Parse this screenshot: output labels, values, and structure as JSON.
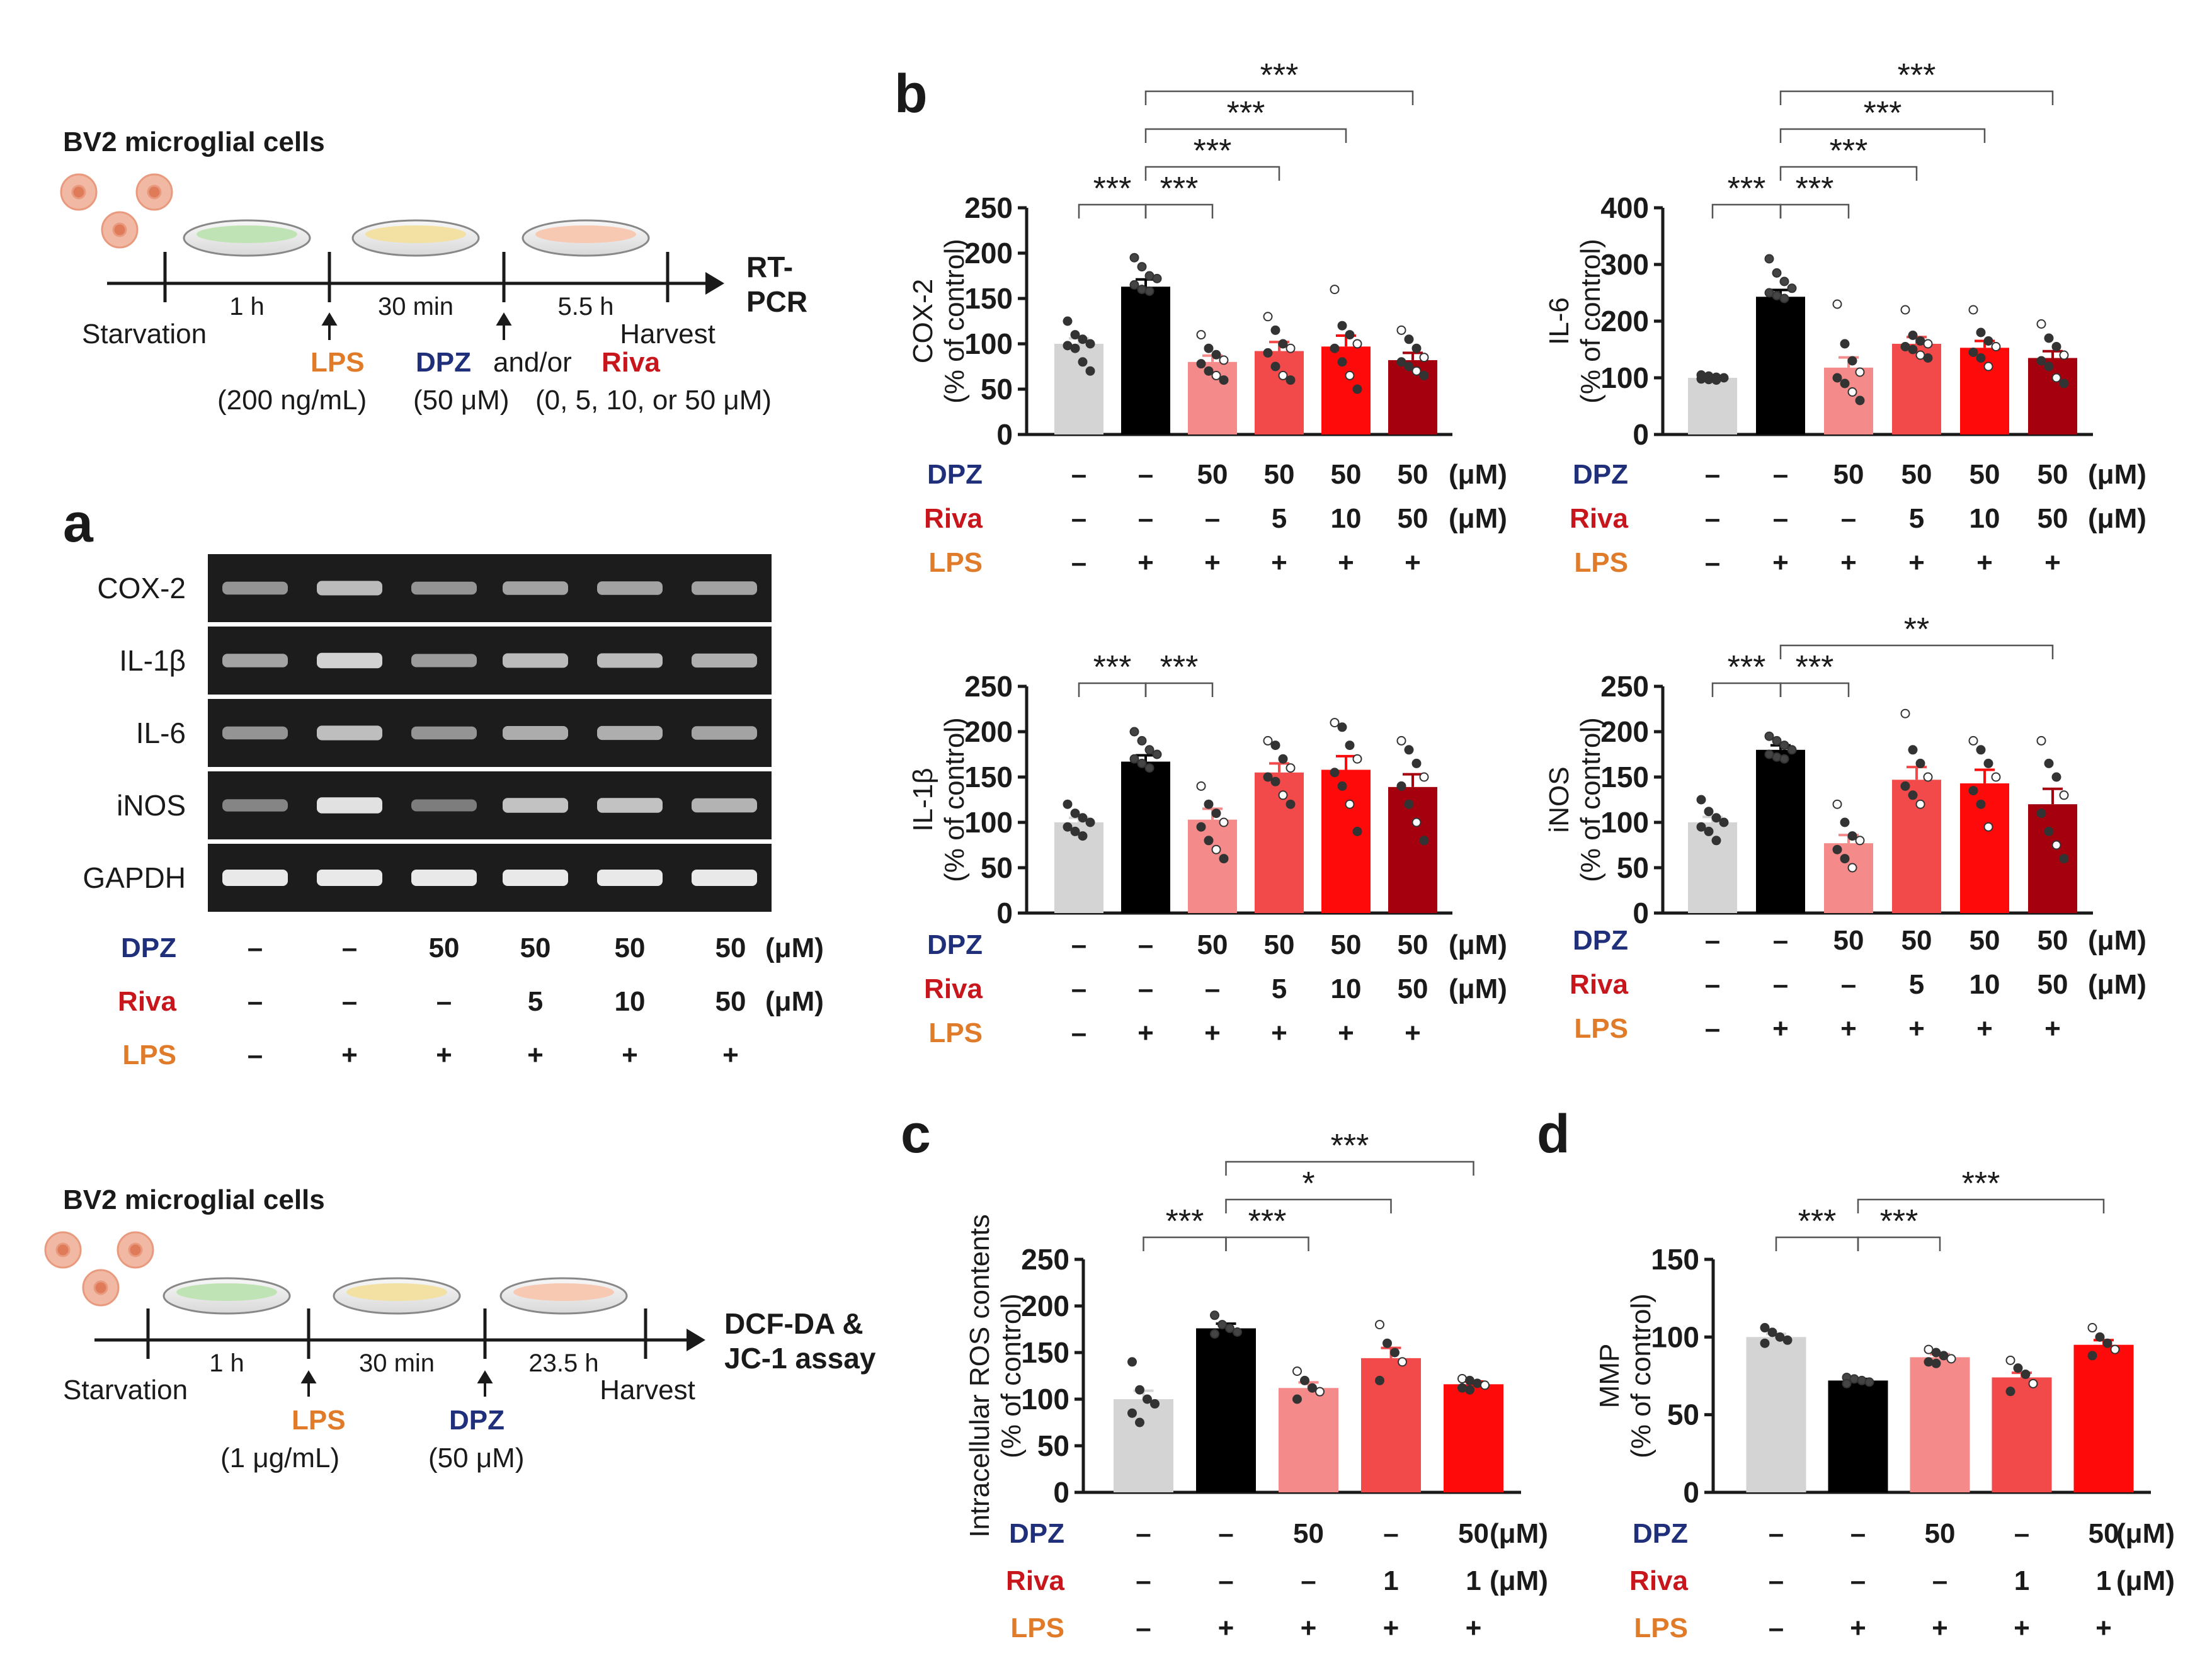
{
  "colors": {
    "ctrl": "#d4d4d4",
    "lps": "#000000",
    "t1": "#f48a8a",
    "t2": "#f24a4a",
    "t3": "#ff0a0a",
    "t4": "#a4000e",
    "dpz": "#1f2f7a",
    "riva": "#c8161d",
    "lps_label": "#e07b2a",
    "gel_bg": "#1c1c1c",
    "gel_band": "#e9e9e9"
  },
  "panel_labels": {
    "a": "a",
    "b": "b",
    "c": "c",
    "d": "d"
  },
  "schema_top": {
    "title": "BV2 microglial cells",
    "durations": [
      "1 h",
      "30 min",
      "5.5 h"
    ],
    "start": "Starvation",
    "end": "Harvest",
    "assay": [
      "RT-",
      "PCR"
    ],
    "lps": "LPS",
    "lps_dose": "(200 ng/mL)",
    "dpz": "DPZ",
    "andor": "and/or",
    "riva": "Riva",
    "dpz_dose": "(50 μM)",
    "riva_dose": "(0, 5, 10, or 50 μM)"
  },
  "schema_bottom": {
    "title": "BV2 microglial cells",
    "durations": [
      "1 h",
      "30 min",
      "23.5 h"
    ],
    "start": "Starvation",
    "end": "Harvest",
    "assay": [
      "DCF-DA &",
      "JC-1 assay"
    ],
    "lps": "LPS",
    "lps_dose": "(1 μg/mL)",
    "dpz": "DPZ",
    "dpz_dose": "(50 μM)"
  },
  "gel": {
    "rows": [
      "COX-2",
      "IL-1β",
      "IL-6",
      "iNOS",
      "GAPDH"
    ],
    "lanes": 6,
    "intensity": [
      [
        0.45,
        0.7,
        0.45,
        0.55,
        0.55,
        0.55
      ],
      [
        0.55,
        0.85,
        0.5,
        0.7,
        0.7,
        0.62
      ],
      [
        0.45,
        0.72,
        0.45,
        0.6,
        0.62,
        0.55
      ],
      [
        0.35,
        0.95,
        0.3,
        0.75,
        0.75,
        0.65
      ],
      [
        1.0,
        1.0,
        1.0,
        1.0,
        1.0,
        1.0
      ]
    ]
  },
  "treat_rows6": {
    "labels": [
      "DPZ",
      "Riva",
      "LPS"
    ],
    "dpz": [
      "–",
      "–",
      "50",
      "50",
      "50",
      "50"
    ],
    "riva": [
      "–",
      "–",
      "–",
      "5",
      "10",
      "50"
    ],
    "lps": [
      "–",
      "+",
      "+",
      "+",
      "+",
      "+"
    ],
    "unit": "(μM)"
  },
  "treat_rows5": {
    "labels": [
      "DPZ",
      "Riva",
      "LPS"
    ],
    "dpz": [
      "–",
      "–",
      "50",
      "–",
      "50"
    ],
    "riva": [
      "–",
      "–",
      "–",
      "1",
      "1"
    ],
    "lps": [
      "–",
      "+",
      "+",
      "+",
      "+"
    ],
    "unit": "(μM)"
  },
  "chart_data": [
    {
      "id": "b-cox2",
      "type": "bar",
      "ylabel": "COX-2",
      "ylabel2": "(% of control)",
      "ylim": [
        0,
        250
      ],
      "yticks": [
        0,
        50,
        100,
        150,
        200,
        250
      ],
      "values": [
        100,
        163,
        80,
        92,
        97,
        82
      ],
      "errors": [
        6,
        8,
        7,
        10,
        12,
        8
      ],
      "dots": [
        [
          125,
          110,
          105,
          100,
          98,
          95,
          80,
          70
        ],
        [
          195,
          185,
          175,
          172,
          165,
          160,
          158
        ],
        [
          110,
          95,
          88,
          82,
          78,
          70,
          65,
          60
        ],
        [
          130,
          115,
          100,
          95,
          90,
          75,
          65,
          60
        ],
        [
          160,
          120,
          110,
          100,
          95,
          80,
          65,
          50
        ],
        [
          115,
          105,
          95,
          85,
          80,
          75,
          70,
          65
        ]
      ],
      "sig": [
        {
          "a": 0,
          "b": 1,
          "label": "***",
          "level": 0
        },
        {
          "a": 1,
          "b": 2,
          "label": "***",
          "level": 0
        },
        {
          "a": 1,
          "b": 3,
          "label": "***",
          "level": 1
        },
        {
          "a": 1,
          "b": 4,
          "label": "***",
          "level": 2
        },
        {
          "a": 1,
          "b": 5,
          "label": "***",
          "level": 3
        }
      ]
    },
    {
      "id": "b-il6",
      "type": "bar",
      "ylabel": "IL-6",
      "ylabel2": "(% of control)",
      "ylim": [
        0,
        400
      ],
      "yticks": [
        0,
        100,
        200,
        300,
        400
      ],
      "values": [
        100,
        243,
        118,
        160,
        153,
        135
      ],
      "errors": [
        3,
        12,
        18,
        12,
        12,
        12
      ],
      "dots": [
        [
          105,
          103,
          101,
          100,
          98,
          97,
          96
        ],
        [
          310,
          285,
          270,
          258,
          250,
          245,
          240
        ],
        [
          230,
          160,
          130,
          110,
          100,
          90,
          75,
          60
        ],
        [
          220,
          175,
          165,
          160,
          155,
          150,
          140,
          135
        ],
        [
          220,
          180,
          165,
          155,
          145,
          135,
          120
        ],
        [
          195,
          170,
          155,
          140,
          130,
          120,
          100,
          90
        ]
      ],
      "sig": [
        {
          "a": 0,
          "b": 1,
          "label": "***",
          "level": 0
        },
        {
          "a": 1,
          "b": 2,
          "label": "***",
          "level": 0
        },
        {
          "a": 1,
          "b": 3,
          "label": "***",
          "level": 1
        },
        {
          "a": 1,
          "b": 4,
          "label": "***",
          "level": 2
        },
        {
          "a": 1,
          "b": 5,
          "label": "***",
          "level": 3
        }
      ]
    },
    {
      "id": "b-il1b",
      "type": "bar",
      "ylabel": "IL-1β",
      "ylabel2": "(% of control)",
      "ylim": [
        0,
        250
      ],
      "yticks": [
        0,
        50,
        100,
        150,
        200,
        250
      ],
      "values": [
        100,
        167,
        103,
        155,
        158,
        139
      ],
      "errors": [
        5,
        7,
        12,
        10,
        15,
        14
      ],
      "dots": [
        [
          120,
          110,
          105,
          100,
          95,
          90,
          85
        ],
        [
          200,
          190,
          180,
          175,
          170,
          165,
          160
        ],
        [
          140,
          120,
          110,
          100,
          95,
          80,
          70,
          60
        ],
        [
          190,
          185,
          170,
          160,
          150,
          145,
          130,
          120
        ],
        [
          210,
          205,
          185,
          170,
          155,
          140,
          120,
          90
        ],
        [
          190,
          180,
          165,
          150,
          140,
          120,
          100,
          80
        ]
      ],
      "sig": [
        {
          "a": 0,
          "b": 1,
          "label": "***",
          "level": 0
        },
        {
          "a": 1,
          "b": 2,
          "label": "***",
          "level": 0
        }
      ]
    },
    {
      "id": "b-inos",
      "type": "bar",
      "ylabel": "iNOS",
      "ylabel2": "(% of control)",
      "ylim": [
        0,
        250
      ],
      "yticks": [
        0,
        50,
        100,
        150,
        200,
        250
      ],
      "values": [
        100,
        180,
        77,
        147,
        143,
        120
      ],
      "errors": [
        6,
        5,
        9,
        14,
        15,
        17
      ],
      "dots": [
        [
          125,
          112,
          105,
          100,
          95,
          90,
          80
        ],
        [
          195,
          190,
          185,
          180,
          175,
          172,
          170
        ],
        [
          120,
          100,
          85,
          80,
          70,
          60,
          50
        ],
        [
          220,
          180,
          165,
          150,
          140,
          130,
          120
        ],
        [
          190,
          180,
          165,
          150,
          135,
          120,
          95
        ],
        [
          190,
          165,
          150,
          130,
          110,
          90,
          75,
          60
        ]
      ],
      "sig": [
        {
          "a": 0,
          "b": 1,
          "label": "***",
          "level": 0
        },
        {
          "a": 1,
          "b": 2,
          "label": "***",
          "level": 0
        },
        {
          "a": 1,
          "b": 5,
          "label": "**",
          "level": 1
        }
      ]
    },
    {
      "id": "c-ros",
      "type": "bar",
      "ylabel": "Intracellular ROS contents",
      "ylabel2": "(% of control)",
      "ylim": [
        0,
        250
      ],
      "yticks": [
        0,
        50,
        100,
        150,
        200,
        250
      ],
      "values": [
        100,
        176,
        112,
        144,
        116
      ],
      "errors": [
        9,
        5,
        6,
        11,
        3
      ],
      "dots": [
        [
          140,
          110,
          100,
          95,
          85,
          75
        ],
        [
          190,
          180,
          176,
          172,
          170
        ],
        [
          130,
          120,
          112,
          108,
          100
        ],
        [
          180,
          160,
          150,
          140,
          120
        ],
        [
          122,
          120,
          117,
          115,
          112,
          110
        ]
      ],
      "sig": [
        {
          "a": 0,
          "b": 1,
          "label": "***",
          "level": 0
        },
        {
          "a": 1,
          "b": 2,
          "label": "***",
          "level": 0
        },
        {
          "a": 1,
          "b": 3,
          "label": "*",
          "level": 1
        },
        {
          "a": 1,
          "b": 4,
          "label": "***",
          "level": 2
        }
      ]
    },
    {
      "id": "d-mmp",
      "type": "bar",
      "ylabel": "MMP",
      "ylabel2": "(% of control)",
      "ylim": [
        0,
        150
      ],
      "yticks": [
        0,
        50,
        100,
        150
      ],
      "values": [
        100,
        72,
        87,
        74,
        95
      ],
      "errors": [
        2,
        1,
        2,
        3,
        3
      ],
      "dots": [
        [
          106,
          103,
          100,
          98,
          96
        ],
        [
          74,
          73,
          72,
          71,
          70
        ],
        [
          92,
          90,
          88,
          86,
          84,
          83
        ],
        [
          85,
          80,
          76,
          70,
          65
        ],
        [
          106,
          100,
          96,
          92,
          88
        ]
      ],
      "sig": [
        {
          "a": 0,
          "b": 1,
          "label": "***",
          "level": 0
        },
        {
          "a": 1,
          "b": 2,
          "label": "***",
          "level": 0
        },
        {
          "a": 1,
          "b": 4,
          "label": "***",
          "level": 1
        }
      ]
    }
  ]
}
